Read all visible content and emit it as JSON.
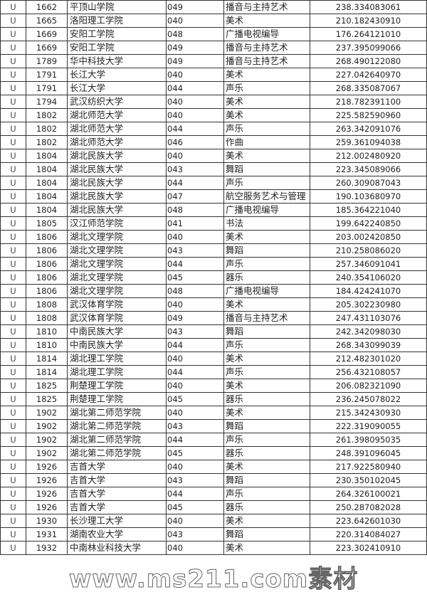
{
  "table": {
    "rows": [
      [
        "U",
        "1662",
        "平顶山学院",
        "049",
        "播音与主持艺术",
        "238.334083061"
      ],
      [
        "U",
        "1665",
        "洛阳理工学院",
        "040",
        "美术",
        "210.182430910"
      ],
      [
        "U",
        "1669",
        "安阳工学院",
        "048",
        "广播电视编导",
        "176.264121010"
      ],
      [
        "U",
        "1669",
        "安阳工学院",
        "049",
        "播音与主持艺术",
        "237.395099066"
      ],
      [
        "U",
        "1789",
        "华中科技大学",
        "049",
        "播音与主持艺术",
        "268.490122080"
      ],
      [
        "U",
        "1791",
        "长江大学",
        "040",
        "美术",
        "227.042640970"
      ],
      [
        "U",
        "1791",
        "长江大学",
        "044",
        "声乐",
        "268.335087067"
      ],
      [
        "U",
        "1794",
        "武汉纺织大学",
        "040",
        "美术",
        "218.782391100"
      ],
      [
        "U",
        "1802",
        "湖北师范大学",
        "040",
        "美术",
        "225.582590960"
      ],
      [
        "U",
        "1802",
        "湖北师范大学",
        "044",
        "声乐",
        "263.342091076"
      ],
      [
        "U",
        "1802",
        "湖北师范大学",
        "046",
        "作曲",
        "259.361094038"
      ],
      [
        "U",
        "1804",
        "湖北民族大学",
        "040",
        "美术",
        "212.002480920"
      ],
      [
        "U",
        "1804",
        "湖北民族大学",
        "043",
        "舞蹈",
        "223.345089066"
      ],
      [
        "U",
        "1804",
        "湖北民族大学",
        "044",
        "声乐",
        "260.309087043"
      ],
      [
        "U",
        "1804",
        "湖北民族大学",
        "047",
        "航空服务艺术与管理",
        "190.103680970"
      ],
      [
        "U",
        "1804",
        "湖北民族大学",
        "048",
        "广播电视编导",
        "185.364221040"
      ],
      [
        "U",
        "1805",
        "汉江师范学院",
        "041",
        "书法",
        "199.642240850"
      ],
      [
        "U",
        "1806",
        "湖北文理学院",
        "040",
        "美术",
        "203.002420850"
      ],
      [
        "U",
        "1806",
        "湖北文理学院",
        "043",
        "舞蹈",
        "210.258086020"
      ],
      [
        "U",
        "1806",
        "湖北文理学院",
        "044",
        "声乐",
        "257.346091041"
      ],
      [
        "U",
        "1806",
        "湖北文理学院",
        "045",
        "器乐",
        "240.354106020"
      ],
      [
        "U",
        "1806",
        "湖北文理学院",
        "048",
        "广播电视编导",
        "184.424241070"
      ],
      [
        "U",
        "1808",
        "武汉体育学院",
        "040",
        "美术",
        "205.302230980"
      ],
      [
        "U",
        "1808",
        "武汉体育学院",
        "049",
        "播音与主持艺术",
        "247.431103076"
      ],
      [
        "U",
        "1810",
        "中南民族大学",
        "043",
        "舞蹈",
        "242.342098030"
      ],
      [
        "U",
        "1810",
        "中南民族大学",
        "044",
        "声乐",
        "268.343099039"
      ],
      [
        "U",
        "1814",
        "湖北理工学院",
        "040",
        "美术",
        "212.482301020"
      ],
      [
        "U",
        "1814",
        "湖北理工学院",
        "044",
        "声乐",
        "256.432108057"
      ],
      [
        "U",
        "1825",
        "荆楚理工学院",
        "040",
        "美术",
        "206.082321090"
      ],
      [
        "U",
        "1825",
        "荆楚理工学院",
        "045",
        "器乐",
        "236.245078022"
      ],
      [
        "U",
        "1902",
        "湖北第二师范学院",
        "040",
        "美术",
        "215.342430930"
      ],
      [
        "U",
        "1902",
        "湖北第二师范学院",
        "043",
        "舞蹈",
        "222.319090055"
      ],
      [
        "U",
        "1902",
        "湖北第二师范学院",
        "044",
        "声乐",
        "261.398095035"
      ],
      [
        "U",
        "1902",
        "湖北第二师范学院",
        "045",
        "器乐",
        "248.391096045"
      ],
      [
        "U",
        "1926",
        "吉首大学",
        "040",
        "美术",
        "217.922580940"
      ],
      [
        "U",
        "1926",
        "吉首大学",
        "043",
        "舞蹈",
        "230.350102045"
      ],
      [
        "U",
        "1926",
        "吉首大学",
        "044",
        "声乐",
        "264.326100021"
      ],
      [
        "U",
        "1926",
        "吉首大学",
        "045",
        "器乐",
        "250.287082028"
      ],
      [
        "U",
        "1930",
        "长沙理工大学",
        "040",
        "美术",
        "223.642601030"
      ],
      [
        "U",
        "1931",
        "湖南农业大学",
        "043",
        "舞蹈",
        "220.314084027"
      ],
      [
        "U",
        "1932",
        "中南林业科技大学",
        "040",
        "美术",
        "223.302410910"
      ]
    ]
  },
  "watermark": "www.ms211.com素材"
}
